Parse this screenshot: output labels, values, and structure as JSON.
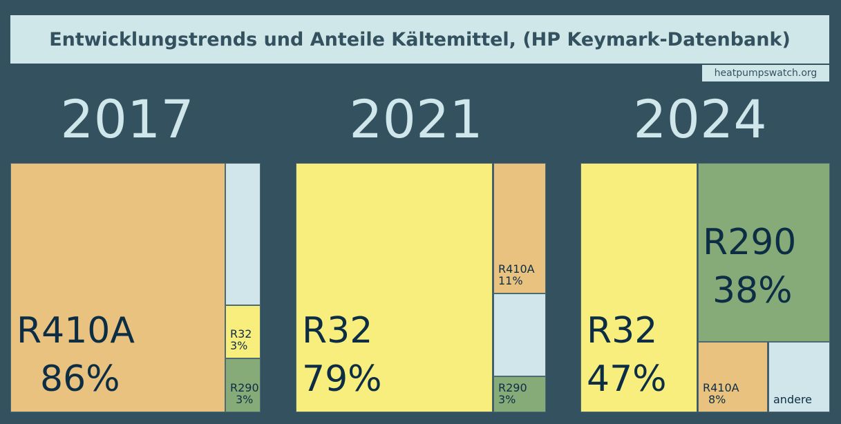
{
  "chart_data": {
    "type": "treemap",
    "title": "Entwicklungstrends und Anteile Kältemittel, (HP Keymark-Datenbank)",
    "source": "heatpumpswatch.org",
    "colors": {
      "R410A": "#e8c27e",
      "R32": "#f8ee7e",
      "R290": "#86ab78",
      "andere": "#d0e6ea"
    },
    "panels": [
      {
        "year": "2017",
        "items": [
          {
            "name": "R410A",
            "value": 86,
            "label": "86%"
          },
          {
            "name": "andere",
            "value": 8,
            "label": ""
          },
          {
            "name": "R32",
            "value": 3,
            "label": "3%"
          },
          {
            "name": "R290",
            "value": 3,
            "label": "3%"
          }
        ]
      },
      {
        "year": "2021",
        "items": [
          {
            "name": "R32",
            "value": 79,
            "label": "79%"
          },
          {
            "name": "R410A",
            "value": 11,
            "label": "11%"
          },
          {
            "name": "andere",
            "value": 7,
            "label": ""
          },
          {
            "name": "R290",
            "value": 3,
            "label": "3%"
          }
        ]
      },
      {
        "year": "2024",
        "items": [
          {
            "name": "R32",
            "value": 47,
            "label": "47%"
          },
          {
            "name": "R290",
            "value": 38,
            "label": "38%"
          },
          {
            "name": "R410A",
            "value": 8,
            "label": "8%"
          },
          {
            "name": "andere",
            "value": 7,
            "label": "andere"
          }
        ]
      }
    ]
  }
}
